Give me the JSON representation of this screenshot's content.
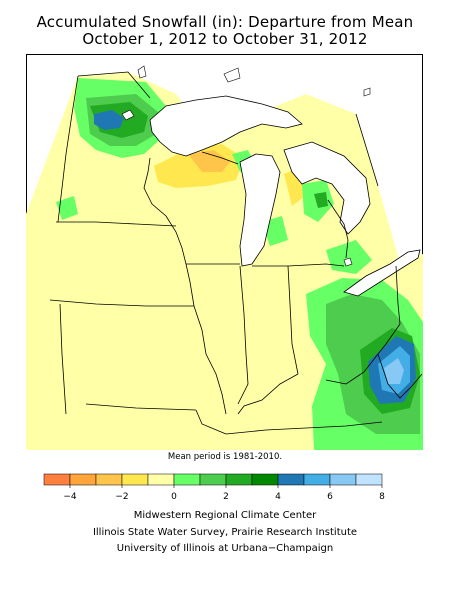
{
  "title": {
    "line1": "Accumulated Snowfall (in): Departure from Mean",
    "line2": "October 1, 2012 to October 31, 2012"
  },
  "note": "Mean period is 1981-2010.",
  "legend": {
    "colors": [
      "#ff7f3f",
      "#ffa53a",
      "#ffc54a",
      "#ffe84f",
      "#ffffa8",
      "#66ff66",
      "#4dcc4d",
      "#22aa22",
      "#008800",
      "#1f78b4",
      "#43aee6",
      "#88c8f4",
      "#c0e4ff"
    ],
    "tick_labels": [
      "−4",
      "−2",
      "0",
      "2",
      "4",
      "6",
      "8"
    ]
  },
  "credits": [
    "Midwestern Regional Climate Center",
    "Illinois State Water Survey, Prairie Research Institute",
    "University of Illinois at Urbana−Champaign"
  ],
  "colors": {
    "base": "#ffffa8",
    "lake": "#ffffff",
    "border": "#000000"
  }
}
